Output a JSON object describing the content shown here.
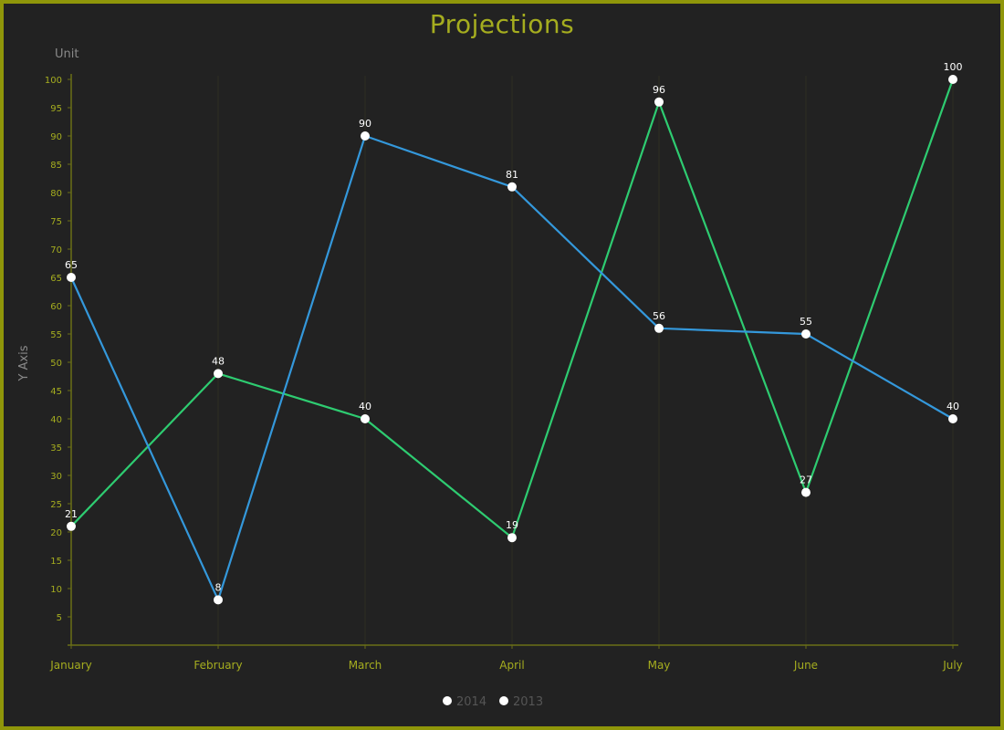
{
  "chart_data": {
    "type": "line",
    "title": "Projections",
    "unit_label": "Unit",
    "ylabel": "Y Axis",
    "xlabel": "",
    "categories": [
      "January",
      "February",
      "March",
      "April",
      "May",
      "June",
      "July"
    ],
    "ylim": [
      0,
      100
    ],
    "yticks": [
      5,
      10,
      15,
      20,
      25,
      30,
      35,
      40,
      45,
      50,
      55,
      60,
      65,
      70,
      75,
      80,
      85,
      90,
      95,
      100
    ],
    "grid": "vertical",
    "legend_position": "bottom-center",
    "series": [
      {
        "name": "2014",
        "values": [
          21,
          48,
          40,
          19,
          96,
          27,
          100
        ],
        "color": "#2ecc71"
      },
      {
        "name": "2013",
        "values": [
          65,
          8,
          90,
          81,
          56,
          55,
          40
        ],
        "color": "#3498db"
      }
    ],
    "colors": {
      "background": "#222222",
      "border": "#8f960a",
      "title": "#a5ad1f",
      "tick": "#a5ad1f",
      "axis": "#6b6f16",
      "grid": "#2d2f22",
      "marker": "#ffffff",
      "legend_text": "#555555"
    }
  }
}
